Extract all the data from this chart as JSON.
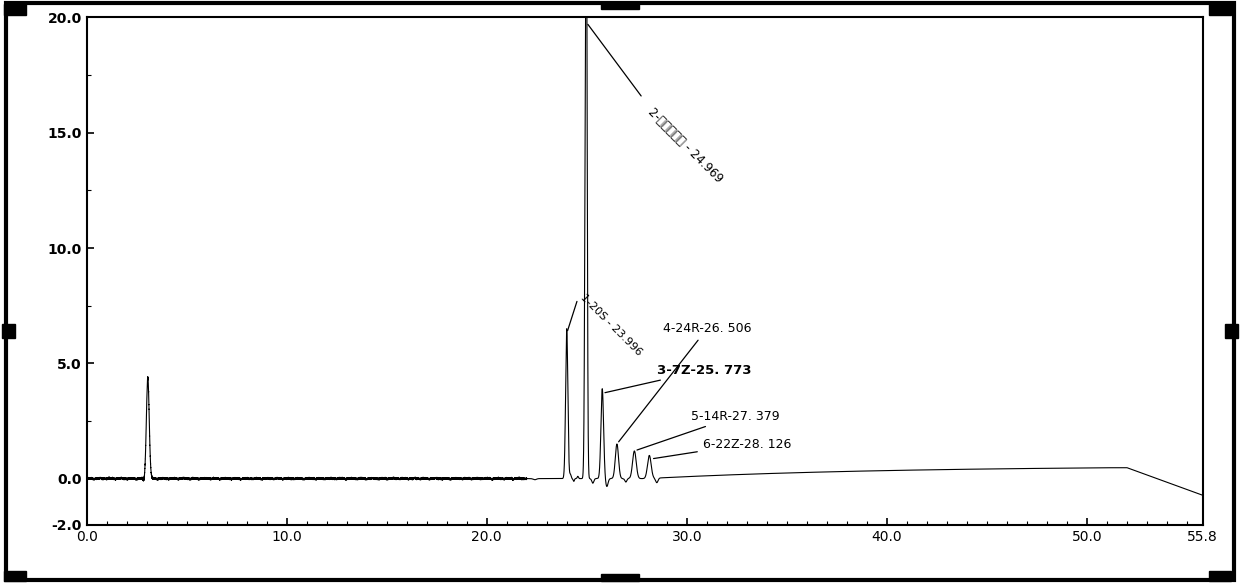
{
  "xlim": [
    0,
    55.8
  ],
  "ylim": [
    -2.0,
    20.0
  ],
  "ytick_positions": [
    -2.0,
    0.0,
    5.0,
    10.0,
    15.0,
    20.0
  ],
  "ytick_labels": [
    "-2.0",
    "0.0",
    "5.0",
    "10.0",
    "15.0",
    "20.0"
  ],
  "xtick_positions": [
    0.0,
    10.0,
    20.0,
    30.0,
    40.0,
    50.0,
    55.8
  ],
  "xtick_labels": [
    "0.0",
    "10.0",
    "20.0",
    "30.0",
    "40.0",
    "50.0",
    "55.8"
  ],
  "background_color": "#ffffff",
  "line_color": "#000000",
  "peak_label_main": "2-活性维生素 - 24.969",
  "peak_label_1": "1-20S - 23.996",
  "peak_label_3": "3-7Z-25. 773",
  "peak_label_4": "4-24R-26. 506",
  "peak_label_5": "5-14R-27. 379",
  "peak_label_6": "6-22Z-28. 126"
}
